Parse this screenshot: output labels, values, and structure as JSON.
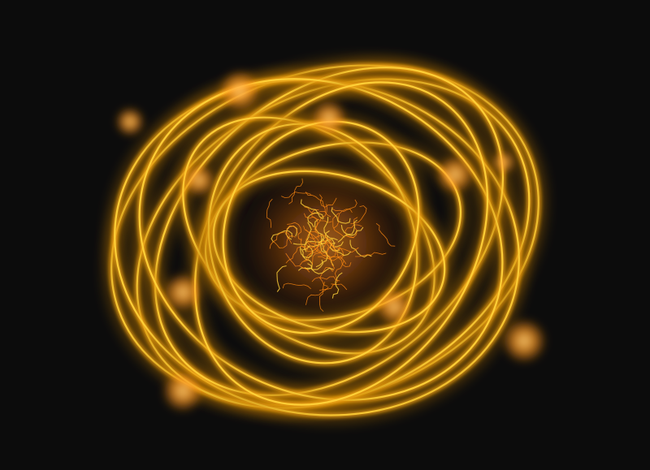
{
  "scene": {
    "subject": "glowing-atom",
    "colors": {
      "background": "#0c0c0c",
      "orbit_bright": "#ffd23a",
      "orbit_warm": "#f2a316",
      "orbit_dark": "#a86a0e",
      "electron": "#ff9a1e",
      "nucleus": "#ff8a12"
    }
  }
}
